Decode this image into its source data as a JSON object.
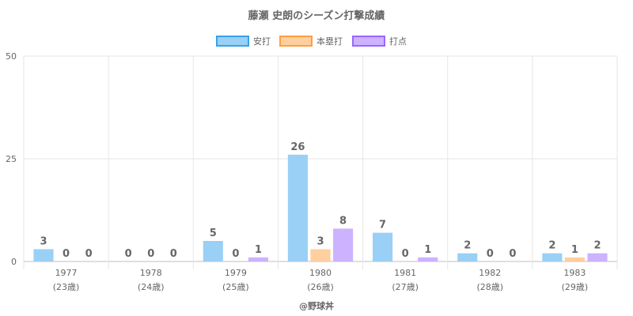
{
  "chart_data": {
    "type": "bar",
    "title": "藤瀬 史朗のシーズン打撃成績",
    "categories": [
      "1977",
      "1978",
      "1979",
      "1980",
      "1981",
      "1982",
      "1983"
    ],
    "category_sublabels": [
      "(23歳)",
      "(24歳)",
      "(25歳)",
      "(26歳)",
      "(27歳)",
      "(28歳)",
      "(29歳)"
    ],
    "series": [
      {
        "name": "安打",
        "values": [
          3,
          0,
          5,
          26,
          7,
          2,
          2
        ],
        "color": "#9ad0f5",
        "border": "#36a2eb"
      },
      {
        "name": "本塁打",
        "values": [
          0,
          0,
          0,
          3,
          0,
          0,
          1
        ],
        "color": "#ffcf9f",
        "border": "#ff9f40"
      },
      {
        "name": "打点",
        "values": [
          0,
          0,
          1,
          8,
          1,
          0,
          2
        ],
        "color": "#ccb2ff",
        "border": "#9966ff"
      }
    ],
    "y_ticks": [
      "0",
      "25",
      "50"
    ],
    "ylim": [
      0,
      50
    ],
    "grid": true,
    "legend": "top-center"
  },
  "credit": "@野球丼"
}
